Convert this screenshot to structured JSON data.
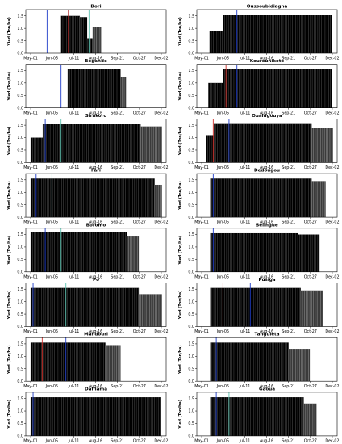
{
  "figure": {
    "x_label": "Sowing date",
    "y_label": "Yied (Ton/ha)"
  },
  "chart_data": [
    {
      "type": "bar",
      "title": "Dori",
      "xlabel": "",
      "ylabel": "Yied (Ton/ha)",
      "x_ticks": [
        "May-01",
        "Jun-05",
        "Jul-11",
        "Aug-16",
        "Sep-21",
        "Oct-27",
        "Dec-02"
      ],
      "y_ticks": [
        0.0,
        0.5,
        1.0,
        1.5
      ],
      "ylim": [
        0,
        1.75
      ],
      "grid": false,
      "bars": [
        {
          "from": "Jun-20",
          "to": "Jul-20",
          "value": 1.5
        },
        {
          "from": "Jul-21",
          "to": "Aug-01",
          "value": 1.45
        },
        {
          "from": "Aug-02",
          "to": "Aug-10",
          "value": 0.6
        },
        {
          "from": "Aug-11",
          "to": "Aug-24",
          "value": 1.05
        }
      ],
      "markers": [
        {
          "date": "May-28",
          "color": "#1e3cc8"
        },
        {
          "date": "Jul-02",
          "color": "#b03030"
        },
        {
          "date": "Aug-05",
          "color": "#5ec2b0"
        }
      ]
    },
    {
      "type": "bar",
      "title": "Oussoubidiagna",
      "xlabel": "",
      "ylabel": "Yied (Ton/ha)",
      "x_ticks": [
        "May-01",
        "Jun-05",
        "Jul-11",
        "Aug-16",
        "Sep-21",
        "Oct-27",
        "Dec-02"
      ],
      "y_ticks": [
        0.0,
        0.5,
        1.0,
        1.5
      ],
      "ylim": [
        0,
        1.75
      ],
      "grid": false,
      "bars": [
        {
          "from": "May-14",
          "to": "Jun-04",
          "value": 0.9
        },
        {
          "from": "Jun-05",
          "to": "Nov-30",
          "value": 1.55
        }
      ],
      "markers": [
        {
          "date": "Jun-28",
          "color": "#1e3cc8"
        }
      ]
    },
    {
      "type": "bar",
      "title": "Bogande",
      "xlabel": "",
      "ylabel": "Yied (Ton/ha)",
      "x_ticks": [
        "May-01",
        "Jun-05",
        "Jul-11",
        "Aug-16",
        "Sep-21",
        "Oct-27",
        "Dec-02"
      ],
      "y_ticks": [
        0.0,
        0.5,
        1.0,
        1.5
      ],
      "ylim": [
        0,
        1.75
      ],
      "grid": false,
      "bars": [
        {
          "from": "Jul-01",
          "to": "Sep-25",
          "value": 1.55
        },
        {
          "from": "Sep-26",
          "to": "Oct-04",
          "value": 1.25
        }
      ],
      "markers": [
        {
          "date": "Jun-20",
          "color": "#1e3cc8"
        }
      ]
    },
    {
      "type": "bar",
      "title": "Kourounikoto",
      "xlabel": "",
      "ylabel": "Yied (Ton/ha)",
      "x_ticks": [
        "May-01",
        "Jun-05",
        "Jul-11",
        "Aug-16",
        "Sep-21",
        "Oct-27",
        "Dec-02"
      ],
      "y_ticks": [
        0.0,
        0.5,
        1.0,
        1.5
      ],
      "ylim": [
        0,
        1.75
      ],
      "grid": false,
      "bars": [
        {
          "from": "May-12",
          "to": "Jun-04",
          "value": 1.0
        },
        {
          "from": "Jun-05",
          "to": "Nov-30",
          "value": 1.55
        }
      ],
      "markers": [
        {
          "date": "Jun-10",
          "color": "#d0302a"
        },
        {
          "date": "Jun-28",
          "color": "#1e3cc8"
        }
      ]
    },
    {
      "type": "bar",
      "title": "Sirakoro",
      "xlabel": "",
      "ylabel": "Yied (Ton/ha)",
      "x_ticks": [
        "May-01",
        "Jun-05",
        "Jul-11",
        "Aug-16",
        "Sep-21",
        "Oct-27",
        "Dec-02"
      ],
      "y_ticks": [
        0.0,
        0.5,
        1.0,
        1.5
      ],
      "ylim": [
        0,
        1.75
      ],
      "grid": false,
      "bars": [
        {
          "from": "May-01",
          "to": "May-20",
          "value": 1.0
        },
        {
          "from": "May-21",
          "to": "Oct-28",
          "value": 1.55
        },
        {
          "from": "Oct-29",
          "to": "Dec-02",
          "value": 1.45
        }
      ],
      "markers": [
        {
          "date": "May-25",
          "color": "#1e3cc8"
        },
        {
          "date": "Jun-20",
          "color": "#5ec2b0"
        }
      ]
    },
    {
      "type": "bar",
      "title": "Ouahigouya",
      "xlabel": "",
      "ylabel": "Yied (Ton/ha)",
      "x_ticks": [
        "May-01",
        "Jun-05",
        "Jul-11",
        "Aug-16",
        "Sep-21",
        "Oct-27",
        "Dec-02"
      ],
      "y_ticks": [
        0.0,
        0.5,
        1.0,
        1.5
      ],
      "ylim": [
        0,
        1.75
      ],
      "grid": false,
      "bars": [
        {
          "from": "May-08",
          "to": "May-20",
          "value": 1.1
        },
        {
          "from": "May-21",
          "to": "Oct-28",
          "value": 1.58
        },
        {
          "from": "Oct-29",
          "to": "Dec-02",
          "value": 1.4
        }
      ],
      "markers": [
        {
          "date": "May-20",
          "color": "#d0302a"
        },
        {
          "date": "Jun-15",
          "color": "#1e3cc8"
        }
      ]
    },
    {
      "type": "bar",
      "title": "Fari",
      "xlabel": "",
      "ylabel": "Yied (Ton/ha)",
      "x_ticks": [
        "May-01",
        "Jun-05",
        "Jul-11",
        "Aug-16",
        "Sep-21",
        "Oct-27",
        "Dec-02"
      ],
      "y_ticks": [
        0.0,
        0.5,
        1.0,
        1.5
      ],
      "ylim": [
        0,
        1.75
      ],
      "grid": false,
      "bars": [
        {
          "from": "May-01",
          "to": "Nov-20",
          "value": 1.55
        },
        {
          "from": "Nov-21",
          "to": "Dec-02",
          "value": 1.3
        }
      ],
      "markers": [
        {
          "date": "May-10",
          "color": "#1e3cc8"
        },
        {
          "date": "Jun-05",
          "color": "#5ec2b0"
        }
      ]
    },
    {
      "type": "bar",
      "title": "Dedougou",
      "xlabel": "",
      "ylabel": "Yied (Ton/ha)",
      "x_ticks": [
        "May-01",
        "Jun-05",
        "Jul-11",
        "Aug-16",
        "Sep-21",
        "Oct-27",
        "Dec-02"
      ],
      "y_ticks": [
        0.0,
        0.5,
        1.0,
        1.5
      ],
      "ylim": [
        0,
        1.75
      ],
      "grid": false,
      "bars": [
        {
          "from": "May-15",
          "to": "Oct-28",
          "value": 1.55
        },
        {
          "from": "Oct-29",
          "to": "Nov-20",
          "value": 1.45
        }
      ],
      "markers": [
        {
          "date": "May-20",
          "color": "#1e3cc8"
        }
      ]
    },
    {
      "type": "bar",
      "title": "Boromo",
      "xlabel": "",
      "ylabel": "Yied (Ton/ha)",
      "x_ticks": [
        "May-01",
        "Jun-05",
        "Jul-11",
        "Aug-16",
        "Sep-21",
        "Oct-27",
        "Dec-02"
      ],
      "y_ticks": [
        0.0,
        0.5,
        1.0,
        1.5
      ],
      "ylim": [
        0,
        1.75
      ],
      "grid": false,
      "bars": [
        {
          "from": "May-01",
          "to": "Oct-05",
          "value": 1.6
        },
        {
          "from": "Oct-06",
          "to": "Oct-25",
          "value": 1.45
        }
      ],
      "markers": [
        {
          "date": "May-25",
          "color": "#1e3cc8"
        },
        {
          "date": "Jun-20",
          "color": "#5ec2b0"
        }
      ]
    },
    {
      "type": "bar",
      "title": "Selingue",
      "xlabel": "",
      "ylabel": "Yied (Ton/ha)",
      "x_ticks": [
        "May-01",
        "Jun-05",
        "Jul-11",
        "Aug-16",
        "Sep-21",
        "Oct-27",
        "Dec-02"
      ],
      "y_ticks": [
        0.0,
        0.5,
        1.0,
        1.5
      ],
      "ylim": [
        0,
        1.75
      ],
      "grid": false,
      "bars": [
        {
          "from": "May-15",
          "to": "Oct-05",
          "value": 1.55
        },
        {
          "from": "Oct-06",
          "to": "Nov-10",
          "value": 1.5
        }
      ],
      "markers": [
        {
          "date": "May-20",
          "color": "#1e3cc8"
        }
      ]
    },
    {
      "type": "bar",
      "title": "Po",
      "xlabel": "",
      "ylabel": "Yied (Ton/ha)",
      "x_ticks": [
        "May-01",
        "Jun-05",
        "Jul-11",
        "Aug-16",
        "Sep-21",
        "Oct-27",
        "Dec-02"
      ],
      "y_ticks": [
        0.0,
        0.5,
        1.0,
        1.5
      ],
      "ylim": [
        0,
        1.75
      ],
      "grid": false,
      "bars": [
        {
          "from": "May-01",
          "to": "Oct-25",
          "value": 1.55
        },
        {
          "from": "Oct-26",
          "to": "Dec-02",
          "value": 1.3
        }
      ],
      "markers": [
        {
          "date": "May-05",
          "color": "#1e3cc8"
        },
        {
          "date": "Jun-28",
          "color": "#5ec2b0"
        }
      ]
    },
    {
      "type": "bar",
      "title": "Pusiga",
      "xlabel": "",
      "ylabel": "Yied (Ton/ha)",
      "x_ticks": [
        "May-01",
        "Jun-05",
        "Jul-11",
        "Aug-16",
        "Sep-21",
        "Oct-27",
        "Dec-02"
      ],
      "y_ticks": [
        0.0,
        0.5,
        1.0,
        1.5
      ],
      "ylim": [
        0,
        1.75
      ],
      "grid": false,
      "bars": [
        {
          "from": "May-15",
          "to": "Oct-10",
          "value": 1.55
        },
        {
          "from": "Oct-11",
          "to": "Nov-15",
          "value": 1.45
        }
      ],
      "markers": [
        {
          "date": "Jun-05",
          "color": "#d0302a"
        },
        {
          "date": "Jul-20",
          "color": "#1e3cc8"
        }
      ]
    },
    {
      "type": "bar",
      "title": "Mandouri",
      "xlabel": "",
      "ylabel": "Yied (Ton/ha)",
      "x_ticks": [
        "May-01",
        "Jun-05",
        "Jul-11",
        "Aug-16",
        "Sep-21",
        "Oct-27",
        "Dec-02"
      ],
      "y_ticks": [
        0.0,
        0.5,
        1.0,
        1.5
      ],
      "ylim": [
        0,
        1.75
      ],
      "grid": false,
      "bars": [
        {
          "from": "May-01",
          "to": "Aug-31",
          "value": 1.55
        },
        {
          "from": "Sep-01",
          "to": "Sep-25",
          "value": 1.45
        }
      ],
      "markers": [
        {
          "date": "May-20",
          "color": "#d0302a"
        },
        {
          "date": "Jun-28",
          "color": "#1e3cc8"
        }
      ]
    },
    {
      "type": "bar",
      "title": "Tanguieta",
      "xlabel": "",
      "ylabel": "Yied (Ton/ha)",
      "x_ticks": [
        "May-01",
        "Jun-05",
        "Jul-11",
        "Aug-16",
        "Sep-21",
        "Oct-27",
        "Dec-02"
      ],
      "y_ticks": [
        0.0,
        0.5,
        1.0,
        1.5
      ],
      "ylim": [
        0,
        1.75
      ],
      "grid": false,
      "bars": [
        {
          "from": "May-15",
          "to": "Sep-20",
          "value": 1.55
        },
        {
          "from": "Sep-21",
          "to": "Oct-25",
          "value": 1.3
        }
      ],
      "markers": [
        {
          "date": "May-25",
          "color": "#1e3cc8"
        }
      ]
    },
    {
      "type": "bar",
      "title": "Daffiama",
      "xlabel": "Sowing date",
      "ylabel": "Yied (Ton/ha)",
      "x_ticks": [
        "May-01",
        "Jun-05",
        "Jul-11",
        "Aug-16",
        "Sep-21",
        "Oct-27",
        "Dec-02"
      ],
      "y_ticks": [
        0.0,
        0.5,
        1.0,
        1.5
      ],
      "ylim": [
        0,
        1.75
      ],
      "grid": false,
      "bars": [
        {
          "from": "May-01",
          "to": "Nov-30",
          "value": 1.55
        }
      ],
      "markers": [
        {
          "date": "May-05",
          "color": "#1e3cc8"
        }
      ]
    },
    {
      "type": "bar",
      "title": "Gaoua",
      "xlabel": "Sowing date",
      "ylabel": "Yied (Ton/ha)",
      "x_ticks": [
        "May-01",
        "Jun-05",
        "Jul-11",
        "Aug-16",
        "Sep-21",
        "Oct-27",
        "Dec-02"
      ],
      "y_ticks": [
        0.0,
        0.5,
        1.0,
        1.5
      ],
      "ylim": [
        0,
        1.75
      ],
      "grid": false,
      "bars": [
        {
          "from": "May-15",
          "to": "Oct-15",
          "value": 1.55
        },
        {
          "from": "Oct-16",
          "to": "Nov-05",
          "value": 1.3
        }
      ],
      "markers": [
        {
          "date": "May-25",
          "color": "#1e3cc8"
        },
        {
          "date": "Jun-15",
          "color": "#5ec2b0"
        }
      ]
    }
  ]
}
